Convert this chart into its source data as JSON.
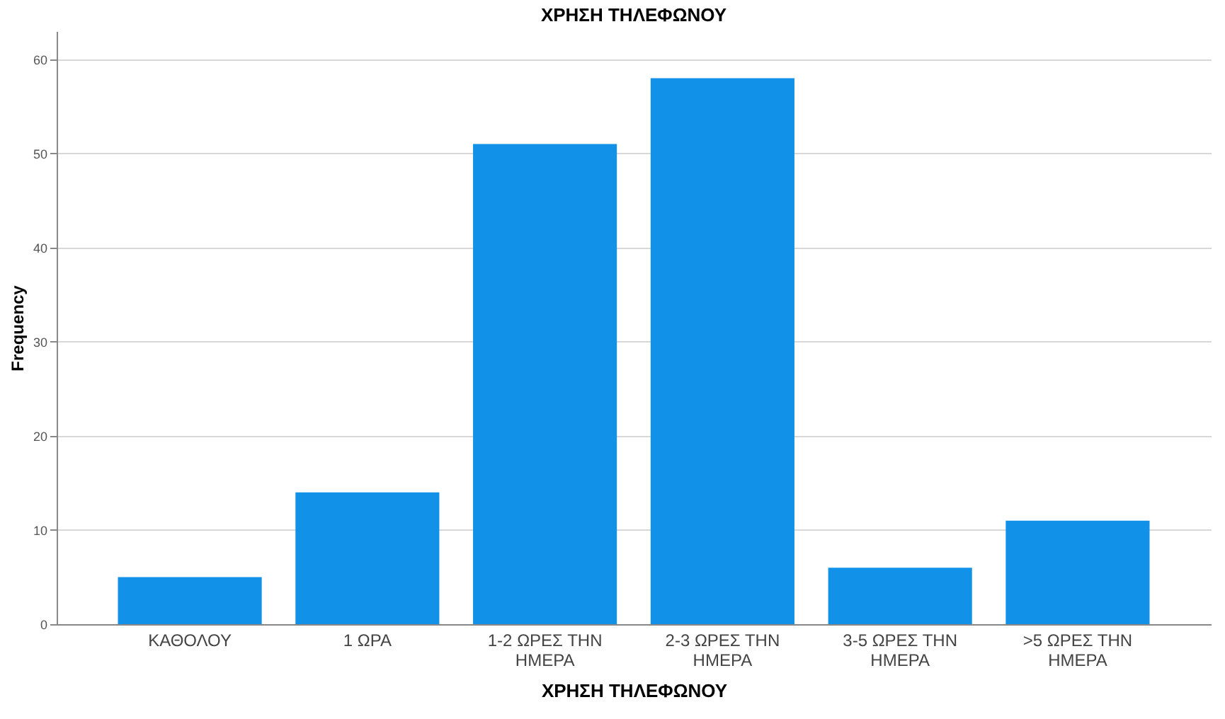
{
  "chart_data": {
    "type": "bar",
    "title": "ΧΡΗΣΗ ΤΗΛΕΦΩΝΟΥ",
    "xlabel": "ΧΡΗΣΗ ΤΗΛΕΦΩΝΟΥ",
    "ylabel": "Frequency",
    "categories": [
      "ΚΑΘΟΛΟΥ",
      "1 ΩΡΑ",
      "1-2 ΩΡΕΣ ΤΗΝ\nΗΜΕΡΑ",
      "2-3 ΩΡΕΣ ΤΗΝ\nΗΜΕΡΑ",
      "3-5 ΩΡΕΣ ΤΗΝ\nΗΜΕΡΑ",
      ">5 ΩΡΕΣ ΤΗΝ\nΗΜΕΡΑ"
    ],
    "values": [
      5,
      14,
      51,
      58,
      6,
      11
    ],
    "color": "#1192e8",
    "ylim": [
      0,
      63
    ],
    "yticks": [
      0,
      10,
      20,
      30,
      40,
      50,
      60
    ],
    "grid": "y"
  }
}
